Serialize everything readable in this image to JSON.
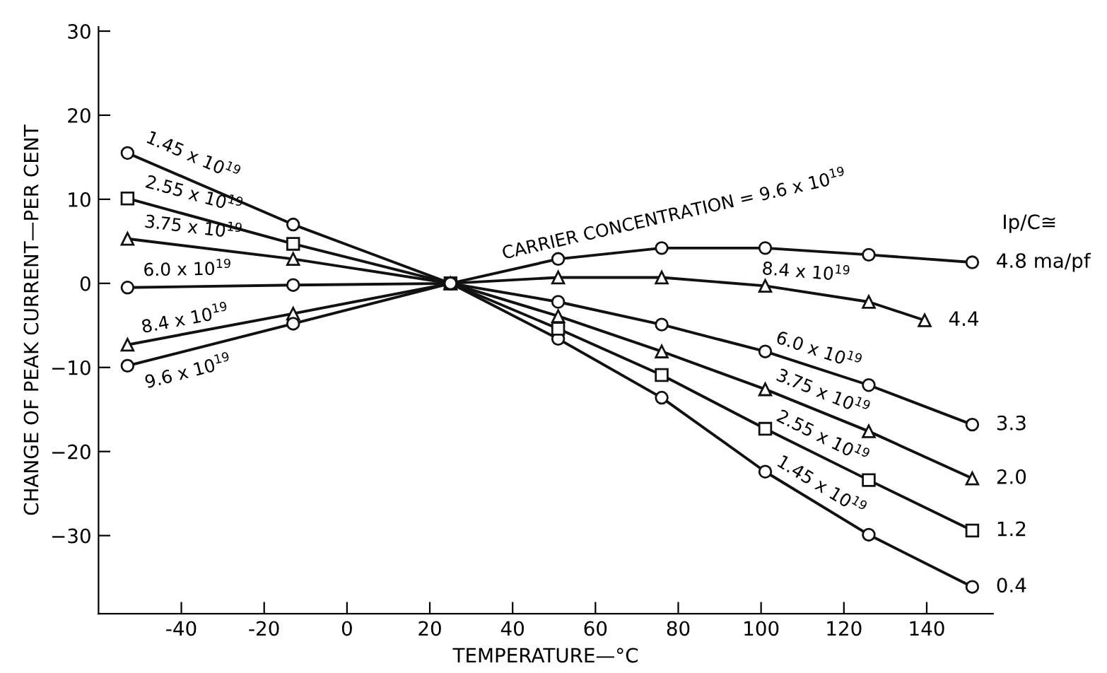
{
  "chart_data": {
    "type": "line",
    "xlabel": "TEMPERATURE—°C",
    "ylabel": "CHANGE OF PEAK CURRENT—PER CENT",
    "xlim": [
      -60,
      156
    ],
    "ylim": [
      -39.3,
      30.5
    ],
    "xticks": [
      -40,
      -20,
      0,
      20,
      40,
      60,
      80,
      100,
      120,
      140
    ],
    "yticks": [
      {
        "value": 30,
        "label": "30"
      },
      {
        "value": 20,
        "label": "20"
      },
      {
        "value": 10,
        "label": "10"
      },
      {
        "value": 0,
        "label": "0"
      },
      {
        "value": -10,
        "label": "−10"
      },
      {
        "value": -20,
        "label": "−20"
      },
      {
        "value": -30,
        "label": "−30"
      }
    ],
    "grid": false,
    "legend": false,
    "line_style": "solid",
    "series": [
      {
        "name": "1.45 x 10$^{19}$",
        "color": "#111111",
        "marker": "circle",
        "x": [
          -53,
          -13,
          25,
          51,
          76,
          101,
          126,
          151
        ],
        "values": [
          15.5,
          7.0,
          0,
          -6.6,
          -13.6,
          -22.4,
          -29.9,
          -36.1
        ]
      },
      {
        "name": "2.55 x 10$^{19}$",
        "color": "#111111",
        "marker": "square",
        "x": [
          -53,
          -13,
          25,
          51,
          76,
          101,
          126,
          151
        ],
        "values": [
          10.1,
          4.7,
          0,
          -5.4,
          -10.9,
          -17.3,
          -23.4,
          -29.4
        ]
      },
      {
        "name": "3.75 x 10$^{19}$",
        "color": "#111111",
        "marker": "triangle",
        "x": [
          -53,
          -13,
          25,
          51,
          76,
          101,
          126,
          151
        ],
        "values": [
          5.3,
          2.9,
          0,
          -3.9,
          -8.1,
          -12.6,
          -17.6,
          -23.2
        ]
      },
      {
        "name": "6.0 x 10$^{19}$",
        "color": "#111111",
        "marker": "circle",
        "x": [
          -53,
          -13,
          25,
          51,
          76,
          101,
          126,
          151
        ],
        "values": [
          -0.5,
          -0.2,
          0,
          -2.2,
          -4.9,
          -8.1,
          -12.1,
          -16.8
        ]
      },
      {
        "name": "8.4 x 10$^{19}$",
        "color": "#111111",
        "marker": "triangle",
        "x": [
          -53,
          -13,
          25,
          51,
          76,
          101,
          126,
          139.5
        ],
        "values": [
          -7.3,
          -3.6,
          0,
          0.7,
          0.7,
          -0.3,
          -2.2,
          -4.4
        ]
      },
      {
        "name": "9.6 x 10$^{19}$",
        "color": "#111111",
        "marker": "circle",
        "x": [
          -53,
          -13,
          25,
          51,
          76,
          101,
          126,
          151
        ],
        "values": [
          -9.8,
          -4.8,
          0,
          2.9,
          4.2,
          4.2,
          3.4,
          2.5
        ]
      }
    ],
    "annotations": [
      {
        "text": "CARRIER CONCENTRATION = 9.6 x 10$^{19}$",
        "x": 38,
        "y": 1.5
      },
      {
        "text": "8.4 x 10$^{19}$",
        "x": 100,
        "y": -0.3
      },
      {
        "text": "6.0 x 10$^{19}$",
        "x": 103,
        "y": -8.4
      },
      {
        "text": "3.75 x 10$^{19}$",
        "x": 103,
        "y": -12.8
      },
      {
        "text": "2.55 x 10$^{19}$",
        "x": 103,
        "y": -17.6
      },
      {
        "text": "1.45 x 10$^{19}$",
        "x": 103,
        "y": -22.9
      },
      "Ip/C≅",
      {
        "text": "4.8 ma/pf",
        "x": 151,
        "y": 2.5
      },
      {
        "text": "4.4",
        "x": 139.5,
        "y": -4.4
      },
      {
        "text": "3.3",
        "x": 151,
        "y": -16.8
      },
      {
        "text": "2.0",
        "x": 151,
        "y": -23.2
      },
      {
        "text": "1.2",
        "x": 151,
        "y": -29.4
      },
      {
        "text": "0.4",
        "x": 151,
        "y": -36.1
      }
    ]
  }
}
